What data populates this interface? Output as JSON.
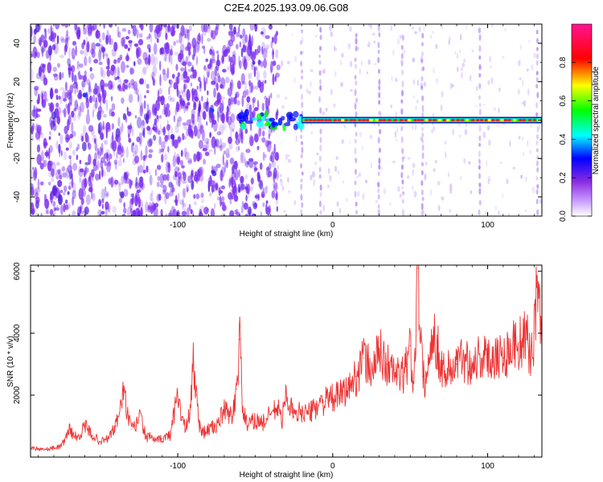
{
  "title": "C2E4.2025.193.09.06.G08",
  "chart_data": [
    {
      "type": "heatmap",
      "xlabel": "Height of straight line (km)",
      "ylabel": "Frequency (Hz)",
      "xlim": [
        -195,
        135
      ],
      "ylim": [
        -50,
        50
      ],
      "xticks": [
        -100,
        0,
        100
      ],
      "xtick_labels": [
        "-100",
        "0",
        "100"
      ],
      "yticks": [
        -40,
        -20,
        0,
        20,
        40
      ],
      "ytick_labels": [
        "-40",
        "-20",
        "0",
        "20",
        "40"
      ],
      "colorbar": {
        "label": "Normalized spectral amplitude",
        "range": [
          0,
          1
        ],
        "ticks": [
          0.0,
          0.2,
          0.4,
          0.6,
          0.8
        ],
        "tick_labels": [
          "0.0",
          "0.2",
          "0.4",
          "0.6",
          "0.8"
        ],
        "colors": [
          "#ffffff",
          "#8a2be2",
          "#0000ff",
          "#00ffff",
          "#00ff00",
          "#ffff00",
          "#ff0000",
          "#ff1493"
        ]
      },
      "features": {
        "noise_region_x": [
          -195,
          -35
        ],
        "noise_color": "#7b2cf0",
        "signal_line_x": [
          -55,
          135
        ],
        "signal_line_frequency": 0,
        "signal_color": "#e8222e",
        "vertical_streaks_x": [
          -20,
          -8,
          15,
          30,
          45,
          58,
          95,
          132
        ]
      }
    },
    {
      "type": "line",
      "xlabel": "Height of straight line (km)",
      "ylabel": "SNR (10 * v/v)",
      "xlim": [
        -195,
        135
      ],
      "ylim": [
        0,
        6200
      ],
      "xticks": [
        -100,
        0,
        100
      ],
      "xtick_labels": [
        "-100",
        "0",
        "100"
      ],
      "yticks": [
        2000,
        4000,
        6000
      ],
      "ytick_labels": [
        "2000",
        "4000",
        "6000"
      ],
      "series": [
        {
          "color": "#ee3333",
          "x": [
            -195,
            -185,
            -175,
            -170,
            -165,
            -160,
            -155,
            -150,
            -145,
            -140,
            -135,
            -132,
            -130,
            -127,
            -125,
            -120,
            -117,
            -115,
            -110,
            -105,
            -100,
            -97,
            -95,
            -92,
            -90,
            -88,
            -86,
            -83,
            -80,
            -75,
            -70,
            -65,
            -62,
            -60,
            -58,
            -55,
            -50,
            -45,
            -40,
            -35,
            -33,
            -30,
            -25,
            -20,
            -15,
            -10,
            -5,
            0,
            5,
            10,
            15,
            20,
            25,
            30,
            35,
            40,
            45,
            48,
            50,
            52,
            55,
            58,
            60,
            62,
            65,
            70,
            75,
            80,
            85,
            90,
            95,
            100,
            105,
            110,
            115,
            120,
            125,
            128,
            130,
            132,
            135
          ],
          "y": [
            300,
            250,
            350,
            900,
            600,
            1000,
            700,
            500,
            600,
            1000,
            2100,
            1300,
            900,
            1000,
            1400,
            600,
            700,
            500,
            600,
            700,
            2100,
            1200,
            900,
            1400,
            3200,
            2000,
            1000,
            800,
            900,
            1000,
            1500,
            1300,
            2200,
            3800,
            1500,
            1000,
            1200,
            1100,
            1400,
            1600,
            1100,
            2100,
            1300,
            1500,
            1400,
            1700,
            1800,
            1900,
            2000,
            2200,
            2600,
            3200,
            2800,
            3400,
            3000,
            2700,
            2600,
            3000,
            3600,
            2200,
            6100,
            2600,
            2500,
            3000,
            4200,
            2900,
            2800,
            3000,
            3200,
            3000,
            3300,
            3100,
            3400,
            3200,
            3600,
            3700,
            3800,
            3300,
            4000,
            5800,
            3500
          ]
        }
      ]
    }
  ]
}
